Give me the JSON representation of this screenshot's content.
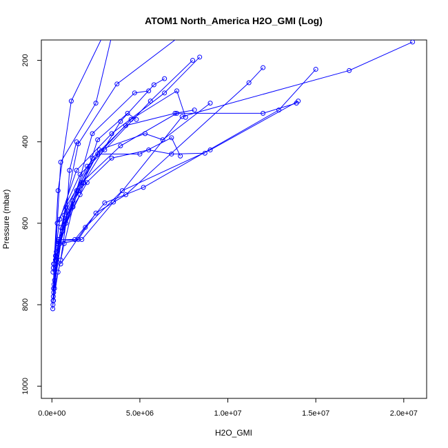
{
  "chart_data": {
    "type": "line",
    "title": "ATOM1 North_America H2O_GMI (Log)",
    "xlabel": "H2O_GMI",
    "ylabel": "Pressure (mbar)",
    "xlim": [
      -600000,
      21300000
    ],
    "ylim": [
      1030,
      150
    ],
    "y_reversed": true,
    "x_ticks": [
      0,
      5000000,
      10000000,
      15000000,
      20000000
    ],
    "x_tick_labels": [
      "0.0e+00",
      "5.0e+06",
      "1.0e+07",
      "1.5e+07",
      "2.0e+07"
    ],
    "y_ticks": [
      200,
      400,
      600,
      800,
      1000
    ],
    "y_tick_labels": [
      "200",
      "400",
      "600",
      "800",
      "1000"
    ],
    "series_color": "#0000ff",
    "marker": "open-circle",
    "series": [
      {
        "x": [
          50000,
          120000,
          350000,
          1100000,
          2900000
        ],
        "y": [
          810,
          700,
          520,
          300,
          140
        ]
      },
      {
        "x": [
          60000,
          200000,
          500000,
          2500000,
          3400000
        ],
        "y": [
          800,
          680,
          450,
          305,
          140
        ]
      },
      {
        "x": [
          80000,
          300000,
          1500000,
          3700000,
          7300000
        ],
        "y": [
          780,
          660,
          405,
          258,
          140
        ]
      },
      {
        "x": [
          70000,
          400000,
          1400000,
          2300000,
          4700000,
          5500000
        ],
        "y": [
          790,
          640,
          520,
          380,
          280,
          275
        ]
      },
      {
        "x": [
          100000,
          600000,
          1600000,
          2600000,
          4300000,
          4800000
        ],
        "y": [
          770,
          620,
          530,
          395,
          330,
          345
        ]
      },
      {
        "x": [
          90000,
          500000,
          1800000,
          3900000,
          5800000,
          6400000
        ],
        "y": [
          760,
          610,
          500,
          350,
          260,
          245
        ]
      },
      {
        "x": [
          120000,
          700000,
          2000000,
          4500000,
          7100000,
          7600000
        ],
        "y": [
          750,
          580,
          460,
          345,
          275,
          340
        ]
      },
      {
        "x": [
          150000,
          800000,
          2600000,
          5000000,
          6800000,
          7300000
        ],
        "y": [
          740,
          560,
          430,
          430,
          390,
          435
        ]
      },
      {
        "x": [
          60000,
          300000,
          1600000,
          3000000,
          5600000,
          8000000
        ],
        "y": [
          720,
          600,
          480,
          420,
          300,
          200
        ]
      },
      {
        "x": [
          80000,
          450000,
          1400000,
          3400000,
          6400000,
          8400000
        ],
        "y": [
          710,
          590,
          470,
          380,
          280,
          192
        ]
      },
      {
        "x": [
          100000,
          900000,
          2300000,
          4200000,
          7000000,
          8100000
        ],
        "y": [
          700,
          570,
          440,
          360,
          330,
          322
        ]
      },
      {
        "x": [
          200000,
          1200000,
          2700000,
          5300000,
          6300000,
          9000000
        ],
        "y": [
          690,
          545,
          420,
          380,
          395,
          305
        ]
      },
      {
        "x": [
          250000,
          1500000,
          3400000,
          5500000,
          6800000,
          8700000
        ],
        "y": [
          670,
          520,
          440,
          420,
          430,
          428
        ]
      },
      {
        "x": [
          300000,
          1700000,
          3900000,
          7100000,
          12000000,
          13900000
        ],
        "y": [
          650,
          500,
          410,
          330,
          330,
          305
        ]
      },
      {
        "x": [
          350000,
          1500000,
          2500000,
          4200000,
          11200000,
          12000000
        ],
        "y": [
          645,
          640,
          575,
          530,
          255,
          218
        ]
      },
      {
        "x": [
          400000,
          1300000,
          3000000,
          5200000,
          12900000,
          15000000
        ],
        "y": [
          640,
          640,
          550,
          512,
          322,
          222
        ]
      },
      {
        "x": [
          450000,
          1700000,
          3500000,
          7400000,
          16900000,
          20500000
        ],
        "y": [
          650,
          640,
          548,
          338,
          225,
          155
        ]
      },
      {
        "x": [
          500000,
          1900000,
          4000000,
          9000000,
          14000000
        ],
        "y": [
          700,
          610,
          520,
          420,
          300
        ]
      },
      {
        "x": [
          150000,
          500000,
          800000,
          1000000,
          1400000
        ],
        "y": [
          760,
          690,
          600,
          470,
          400
        ]
      },
      {
        "x": [
          90000,
          350000,
          700000,
          1200000,
          2000000
        ],
        "y": [
          790,
          720,
          650,
          560,
          500
        ]
      }
    ]
  }
}
